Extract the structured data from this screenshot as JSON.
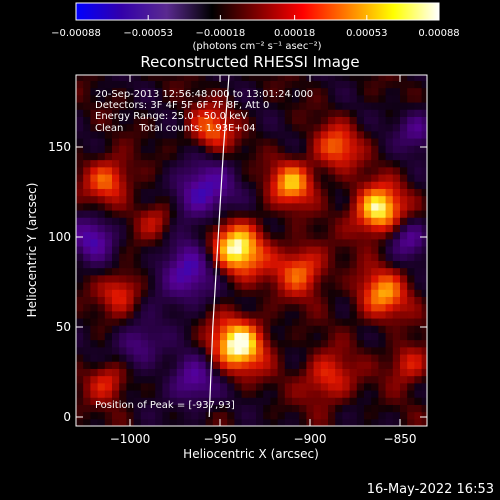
{
  "chart_data": {
    "type": "heatmap",
    "title": "Reconstructed RHESSI Image",
    "xlabel": "Heliocentric X (arcsec)",
    "ylabel": "Heliocentric Y (arcsec)",
    "xlim": [
      -1030,
      -835
    ],
    "ylim": [
      -5,
      190
    ],
    "x_ticks": [
      -1000,
      -950,
      -900,
      -850
    ],
    "x_tick_labels": [
      "−1000",
      "−950",
      "−900",
      "−850"
    ],
    "y_ticks": [
      0,
      50,
      100,
      150
    ],
    "y_tick_labels": [
      "0",
      "50",
      "100",
      "150"
    ],
    "colorbar": {
      "min": -0.00088,
      "max": 0.00088,
      "ticks": [
        -0.00088,
        -0.00053,
        -0.00018,
        0.00018,
        0.00053,
        0.00088
      ],
      "tick_labels": [
        "−0.00088",
        "−0.00053",
        "−0.00018",
        "0.00018",
        "0.00053",
        "0.00088"
      ],
      "unit_label": "(photons cm⁻² s⁻¹ asec⁻²)",
      "colors": [
        "#0000ff",
        "#3300aa",
        "#5a2a90",
        "#000000",
        "#800000",
        "#ff0000",
        "#ff8000",
        "#ffff00",
        "#ffffff"
      ]
    },
    "annotations": [
      "20-Sep-2013 12:56:48.000 to 13:01:24.000",
      "Detectors: 3F 4F 5F 6F 7F 8F, Att 0",
      "Energy Range: 25.0 - 50.0 keV",
      "Clean     Total counts: 1.93E+04"
    ],
    "peak_label": "Position of Peak = [-937,93]",
    "peak": [
      -937,
      93
    ],
    "limb": [
      [
        -945,
        190
      ],
      [
        -948,
        150
      ],
      [
        -951,
        100
      ],
      [
        -954,
        50
      ],
      [
        -956,
        0
      ]
    ],
    "sources": [
      {
        "x": -940,
        "y": 40,
        "amp": 1.0,
        "r": 11
      },
      {
        "x": -941,
        "y": 93,
        "amp": 1.0,
        "r": 11
      },
      {
        "x": -862,
        "y": 115,
        "amp": 1.0,
        "r": 10
      },
      {
        "x": -910,
        "y": 130,
        "amp": 0.75,
        "r": 9
      },
      {
        "x": -860,
        "y": 68,
        "amp": 0.7,
        "r": 10
      },
      {
        "x": -905,
        "y": 82,
        "amp": 0.65,
        "r": 10
      },
      {
        "x": -885,
        "y": 150,
        "amp": 0.6,
        "r": 9
      },
      {
        "x": -1012,
        "y": 132,
        "amp": 0.65,
        "r": 9
      },
      {
        "x": -1005,
        "y": 70,
        "amp": 0.55,
        "r": 8
      },
      {
        "x": -1012,
        "y": 20,
        "amp": 0.5,
        "r": 8
      },
      {
        "x": -985,
        "y": 110,
        "amp": 0.45,
        "r": 8
      },
      {
        "x": -955,
        "y": 160,
        "amp": 0.6,
        "r": 9
      },
      {
        "x": -890,
        "y": 22,
        "amp": 0.55,
        "r": 10
      },
      {
        "x": -845,
        "y": 30,
        "amp": 0.5,
        "r": 8
      },
      {
        "x": -960,
        "y": 125,
        "amp": -0.7,
        "r": 12
      },
      {
        "x": -968,
        "y": 80,
        "amp": -0.7,
        "r": 12
      },
      {
        "x": -965,
        "y": 20,
        "amp": -0.6,
        "r": 10
      },
      {
        "x": -1020,
        "y": 100,
        "amp": -0.6,
        "r": 9
      },
      {
        "x": -845,
        "y": 100,
        "amp": -0.55,
        "r": 8
      },
      {
        "x": -840,
        "y": 160,
        "amp": -0.5,
        "r": 8
      },
      {
        "x": -995,
        "y": 40,
        "amp": -0.5,
        "r": 9
      }
    ]
  },
  "footer": {
    "timestamp": "16-May-2022 16:53"
  }
}
